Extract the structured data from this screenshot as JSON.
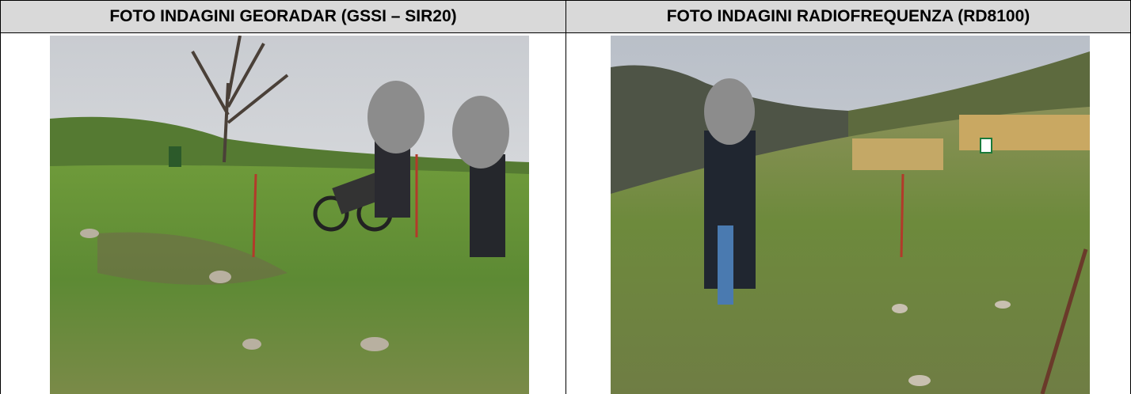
{
  "table": {
    "headers": [
      "FOTO INDAGINI GEORADAR (GSSI – SIR20)",
      "FOTO INDAGINI RADIOFREQUENZA (RD8100)"
    ]
  }
}
